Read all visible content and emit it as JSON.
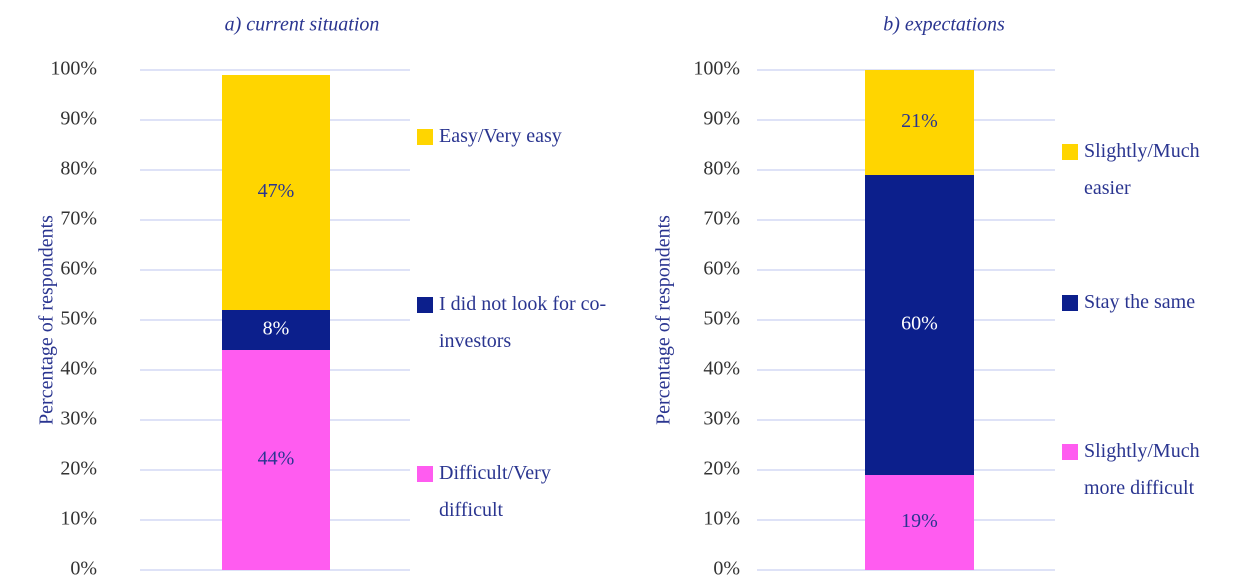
{
  "chart_data": [
    {
      "type": "bar",
      "stacked": true,
      "title": "a) current situation",
      "ylabel": "Percentage of respondents",
      "ylim": [
        0,
        100
      ],
      "grid": true,
      "yticks": [
        {
          "value": 0,
          "label": "0%"
        },
        {
          "value": 10,
          "label": "10%"
        },
        {
          "value": 20,
          "label": "20%"
        },
        {
          "value": 30,
          "label": "30%"
        },
        {
          "value": 40,
          "label": "40%"
        },
        {
          "value": 50,
          "label": "50%"
        },
        {
          "value": 60,
          "label": "60%"
        },
        {
          "value": 70,
          "label": "70%"
        },
        {
          "value": 80,
          "label": "80%"
        },
        {
          "value": 90,
          "label": "90%"
        },
        {
          "value": 100,
          "label": "100%"
        }
      ],
      "series": [
        {
          "name": "Difficult/Very difficult",
          "color": "#ff5cf0",
          "values": [
            44
          ],
          "value_labels": [
            "44%"
          ]
        },
        {
          "name": "I did not look for co-investors",
          "color": "#0c1f8c",
          "values": [
            8
          ],
          "value_labels": [
            "8%"
          ]
        },
        {
          "name": "Easy/Very easy",
          "color": "#ffd500",
          "values": [
            47
          ],
          "value_labels": [
            "47%"
          ]
        }
      ]
    },
    {
      "type": "bar",
      "stacked": true,
      "title": "b) expectations",
      "ylabel": "Percentage of respondents",
      "ylim": [
        0,
        100
      ],
      "grid": true,
      "yticks": [
        {
          "value": 0,
          "label": "0%"
        },
        {
          "value": 10,
          "label": "10%"
        },
        {
          "value": 20,
          "label": "20%"
        },
        {
          "value": 30,
          "label": "30%"
        },
        {
          "value": 40,
          "label": "40%"
        },
        {
          "value": 50,
          "label": "50%"
        },
        {
          "value": 60,
          "label": "60%"
        },
        {
          "value": 70,
          "label": "70%"
        },
        {
          "value": 80,
          "label": "80%"
        },
        {
          "value": 90,
          "label": "90%"
        },
        {
          "value": 100,
          "label": "100%"
        }
      ],
      "series": [
        {
          "name": "Slightly/Much more difficult",
          "color": "#ff5cf0",
          "values": [
            19
          ],
          "value_labels": [
            "19%"
          ]
        },
        {
          "name": "Stay the same",
          "color": "#0c1f8c",
          "values": [
            60
          ],
          "value_labels": [
            "60%"
          ]
        },
        {
          "name": "Slightly/Much easier",
          "color": "#ffd500",
          "values": [
            21
          ],
          "value_labels": [
            "21%"
          ]
        }
      ]
    }
  ]
}
